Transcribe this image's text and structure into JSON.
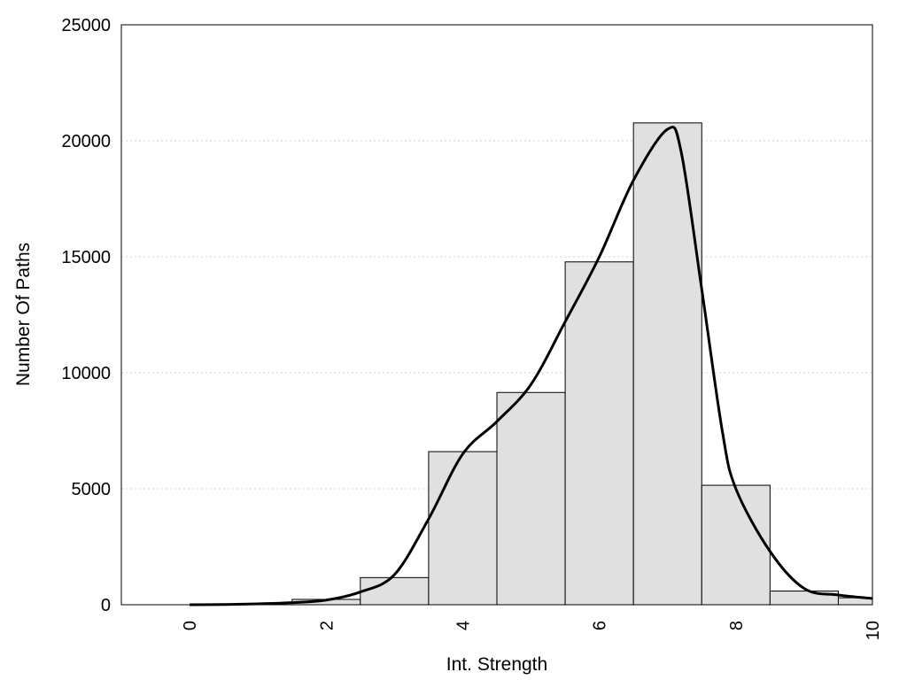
{
  "chart_data": {
    "type": "bar",
    "title": "",
    "xlabel": "Int. Strength",
    "ylabel": "Number Of Paths",
    "xlim": [
      -1,
      10
    ],
    "ylim": [
      0,
      25000
    ],
    "xticks": [
      0,
      2,
      4,
      6,
      8,
      10
    ],
    "yticks": [
      0,
      5000,
      10000,
      15000,
      20000,
      25000
    ],
    "grid": "horizontal dotted",
    "legend": "none",
    "bars": [
      {
        "x": 0,
        "value": 0
      },
      {
        "x": 1,
        "value": 0
      },
      {
        "x": 2,
        "value": 230
      },
      {
        "x": 3,
        "value": 1170
      },
      {
        "x": 4,
        "value": 6600
      },
      {
        "x": 5,
        "value": 9150
      },
      {
        "x": 6,
        "value": 14780
      },
      {
        "x": 7,
        "value": 20770
      },
      {
        "x": 8,
        "value": 5150
      },
      {
        "x": 9,
        "value": 590
      },
      {
        "x": 10,
        "value": 300
      }
    ],
    "density_curve": {
      "x": [
        0,
        0.5,
        1,
        1.5,
        2,
        2.5,
        3,
        3.5,
        4,
        4.5,
        5,
        5.5,
        6,
        6.5,
        7,
        7.2,
        7.5,
        7.8,
        8,
        8.5,
        9,
        9.5,
        10
      ],
      "y": [
        0,
        10,
        40,
        90,
        200,
        550,
        1300,
        3700,
        6500,
        7900,
        9500,
        12200,
        15000,
        18300,
        20500,
        19500,
        13600,
        7500,
        5000,
        2300,
        700,
        420,
        270
      ]
    },
    "colors": {
      "bar_fill": "#e0e0e0",
      "bar_stroke": "#000000",
      "curve": "#000000",
      "grid": "#d0d0d0"
    }
  }
}
